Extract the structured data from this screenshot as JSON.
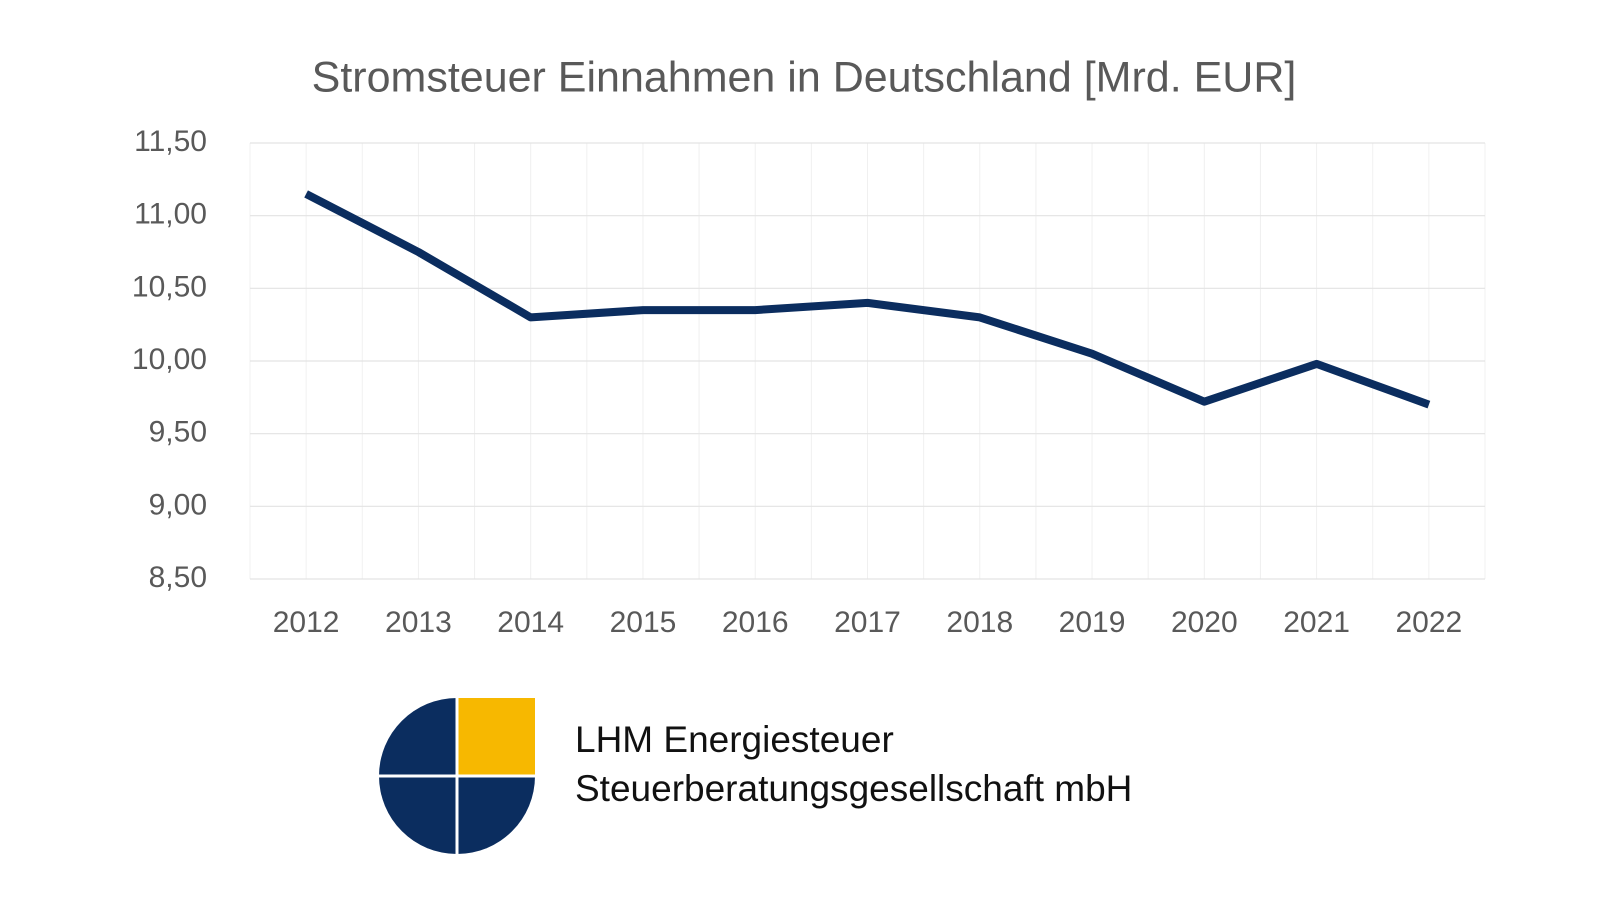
{
  "chart_data": {
    "type": "line",
    "title": "Stromsteuer Einnahmen in Deutschland [Mrd. EUR]",
    "categories": [
      "2012",
      "2013",
      "2014",
      "2015",
      "2016",
      "2017",
      "2018",
      "2019",
      "2020",
      "2021",
      "2022"
    ],
    "values": [
      11.15,
      10.75,
      10.3,
      10.35,
      10.35,
      10.4,
      10.3,
      10.05,
      9.72,
      9.98,
      9.7
    ],
    "color": "#0b2d5f",
    "ylim": [
      8.5,
      11.5
    ],
    "yticks": [
      {
        "value": 8.5,
        "label": "8,50"
      },
      {
        "value": 9,
        "label": "9,00"
      },
      {
        "value": 9.5,
        "label": "9,50"
      },
      {
        "value": 10,
        "label": "10,00"
      },
      {
        "value": 10.5,
        "label": "10,50"
      },
      {
        "value": 11,
        "label": "11,00"
      },
      {
        "value": 11.5,
        "label": "11,50"
      }
    ],
    "grid": true
  },
  "company": {
    "line1": "LHM Energiesteuer",
    "line2": "Steuerberatungsgesellschaft mbH"
  }
}
